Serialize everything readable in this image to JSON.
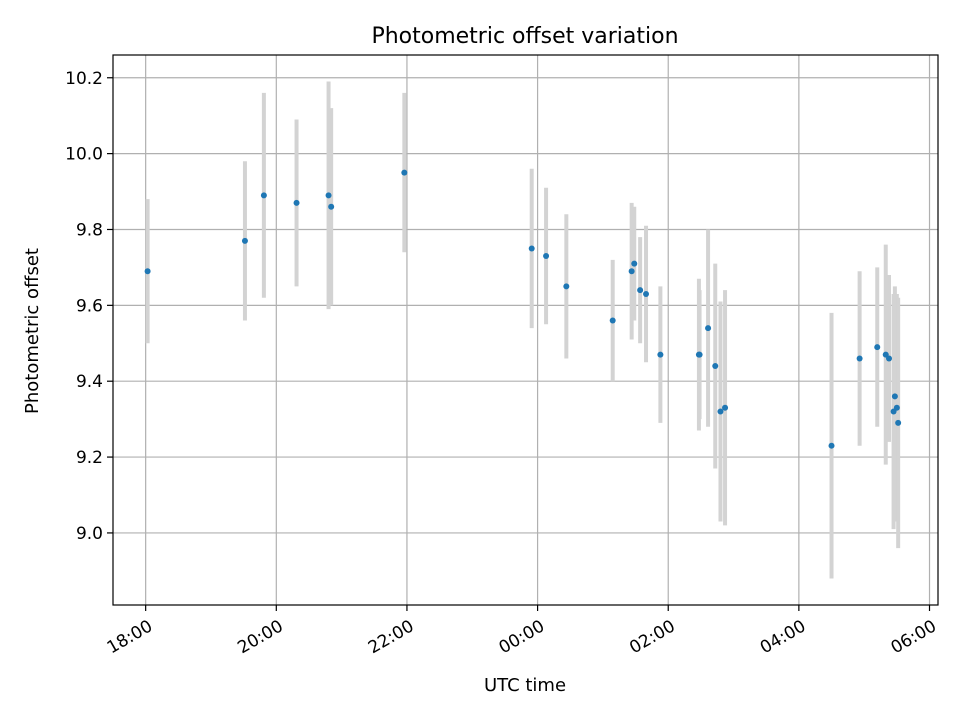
{
  "chart_data": {
    "type": "scatter",
    "title": "Photometric offset variation",
    "xlabel": "UTC time",
    "ylabel": "Photometric offset",
    "x_unit": "hours since 18:00 UTC",
    "xlim": [
      -0.5,
      12.13
    ],
    "ylim": [
      8.81,
      10.26
    ],
    "grid": true,
    "colors": {
      "point": "#1f77b4",
      "errorbar": "#d3d3d3",
      "grid": "#b0b0b0"
    },
    "xticks": [
      {
        "value": 0,
        "label": "18:00"
      },
      {
        "value": 2,
        "label": "20:00"
      },
      {
        "value": 4,
        "label": "22:00"
      },
      {
        "value": 6,
        "label": "00:00"
      },
      {
        "value": 8,
        "label": "02:00"
      },
      {
        "value": 10,
        "label": "04:00"
      },
      {
        "value": 12,
        "label": "06:00"
      }
    ],
    "yticks": [
      {
        "value": 9.0,
        "label": "9.0"
      },
      {
        "value": 9.2,
        "label": "9.2"
      },
      {
        "value": 9.4,
        "label": "9.4"
      },
      {
        "value": 9.6,
        "label": "9.6"
      },
      {
        "value": 9.8,
        "label": "9.8"
      },
      {
        "value": 10.0,
        "label": "10.0"
      },
      {
        "value": 10.2,
        "label": "10.2"
      }
    ],
    "points": [
      {
        "x": 0.03,
        "y": 9.69,
        "err": 0.19
      },
      {
        "x": 1.52,
        "y": 9.77,
        "err": 0.21
      },
      {
        "x": 1.81,
        "y": 9.89,
        "err": 0.27
      },
      {
        "x": 2.31,
        "y": 9.87,
        "err": 0.22
      },
      {
        "x": 2.8,
        "y": 9.89,
        "err": 0.3
      },
      {
        "x": 2.84,
        "y": 9.86,
        "err": 0.26
      },
      {
        "x": 3.96,
        "y": 9.95,
        "err": 0.21
      },
      {
        "x": 5.91,
        "y": 9.75,
        "err": 0.21
      },
      {
        "x": 6.13,
        "y": 9.73,
        "err": 0.18
      },
      {
        "x": 6.44,
        "y": 9.65,
        "err": 0.19
      },
      {
        "x": 7.15,
        "y": 9.56,
        "err": 0.16
      },
      {
        "x": 7.44,
        "y": 9.69,
        "err": 0.18
      },
      {
        "x": 7.48,
        "y": 9.71,
        "err": 0.15
      },
      {
        "x": 7.57,
        "y": 9.64,
        "err": 0.14
      },
      {
        "x": 7.66,
        "y": 9.63,
        "err": 0.18
      },
      {
        "x": 7.88,
        "y": 9.47,
        "err": 0.18
      },
      {
        "x": 8.47,
        "y": 9.47,
        "err": 0.2
      },
      {
        "x": 8.48,
        "y": 9.47,
        "err": 0.17
      },
      {
        "x": 8.61,
        "y": 9.54,
        "err": 0.26
      },
      {
        "x": 8.72,
        "y": 9.44,
        "err": 0.27
      },
      {
        "x": 8.8,
        "y": 9.32,
        "err": 0.29
      },
      {
        "x": 8.87,
        "y": 9.33,
        "err": 0.31
      },
      {
        "x": 10.5,
        "y": 9.23,
        "err": 0.35
      },
      {
        "x": 10.93,
        "y": 9.46,
        "err": 0.23
      },
      {
        "x": 11.2,
        "y": 9.49,
        "err": 0.21
      },
      {
        "x": 11.33,
        "y": 9.47,
        "err": 0.29
      },
      {
        "x": 11.38,
        "y": 9.46,
        "err": 0.22
      },
      {
        "x": 11.45,
        "y": 9.32,
        "err": 0.31
      },
      {
        "x": 11.47,
        "y": 9.36,
        "err": 0.29
      },
      {
        "x": 11.5,
        "y": 9.33,
        "err": 0.3
      },
      {
        "x": 11.52,
        "y": 9.29,
        "err": 0.33
      }
    ]
  }
}
